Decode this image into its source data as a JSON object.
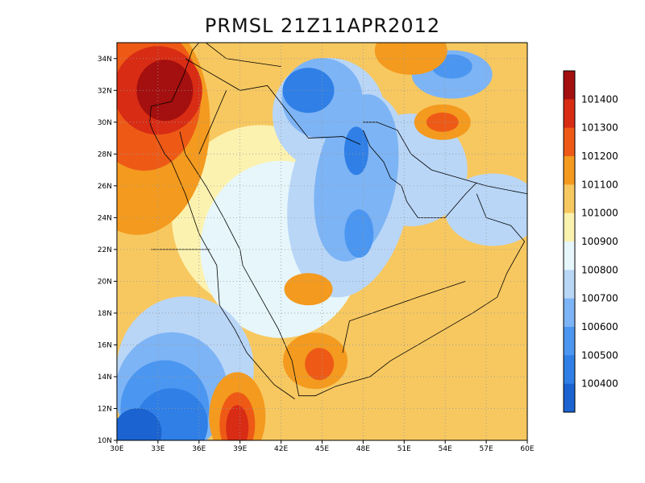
{
  "title": "PRMSL 21Z11APR2012",
  "map": {
    "lon_range": [
      30,
      60
    ],
    "lat_range": [
      10,
      35
    ],
    "lon_ticks": [
      "30E",
      "33E",
      "36E",
      "39E",
      "42E",
      "45E",
      "48E",
      "51E",
      "54E",
      "57E",
      "60E"
    ],
    "lat_ticks": [
      "10N",
      "12N",
      "14N",
      "16N",
      "18N",
      "20N",
      "22N",
      "24N",
      "26N",
      "28N",
      "30N",
      "32N",
      "34N"
    ],
    "grid": "dotted"
  },
  "legend": {
    "levels": [
      "100400",
      "100500",
      "100600",
      "100700",
      "100800",
      "100900",
      "101000",
      "101100",
      "101200",
      "101300",
      "101400"
    ],
    "colors": [
      "#1a63d0",
      "#2f7fe6",
      "#4b96f0",
      "#7db4f5",
      "#b9d6f7",
      "#e6f6fb",
      "#fcf2b0",
      "#f7c860",
      "#f39a1f",
      "#ee5a16",
      "#d82c14",
      "#a40f0f"
    ]
  },
  "features": {
    "highs": [
      {
        "lon": 33.5,
        "lat": 31.5,
        "level": "101400"
      },
      {
        "lon": 38.8,
        "lat": 11.0,
        "level": "101400"
      },
      {
        "lon": 53.9,
        "lat": 30.0,
        "level": "101300"
      },
      {
        "lon": 51.0,
        "lat": 35.0,
        "level": "101200"
      },
      {
        "lon": 45.0,
        "lat": 14.8,
        "level": "101200"
      }
    ],
    "lows": [
      {
        "lon": 43.7,
        "lat": 31.8,
        "level": "100500"
      },
      {
        "lon": 47.7,
        "lat": 28.0,
        "level": "100500"
      },
      {
        "lon": 34.5,
        "lat": 13.0,
        "level": "100400"
      },
      {
        "lon": 31.0,
        "lat": 11.0,
        "level": "100400"
      }
    ]
  }
}
